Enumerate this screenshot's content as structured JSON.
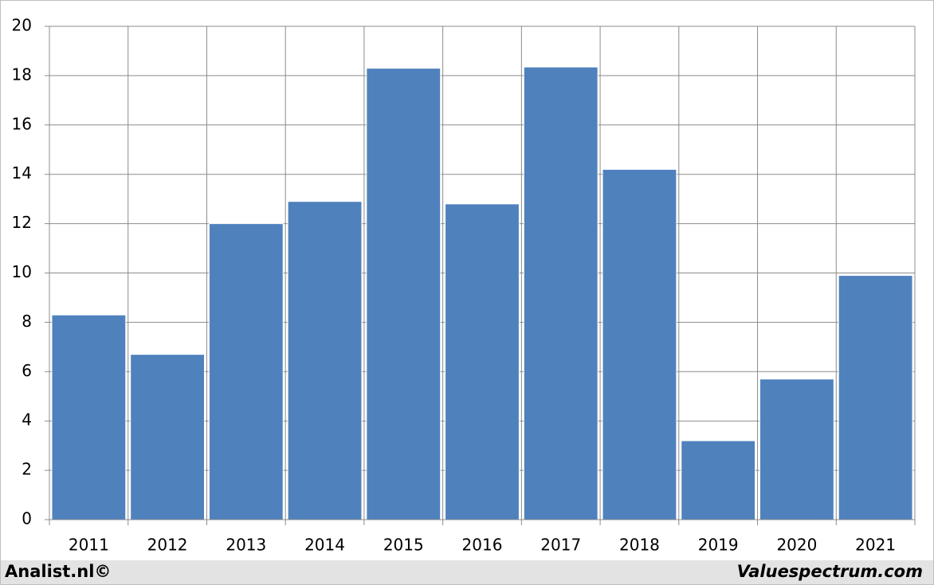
{
  "chart_data": {
    "type": "bar",
    "categories": [
      "2011",
      "2012",
      "2013",
      "2014",
      "2015",
      "2016",
      "2017",
      "2018",
      "2019",
      "2020",
      "2021"
    ],
    "values": [
      8.3,
      6.7,
      12.0,
      12.9,
      18.3,
      12.8,
      18.35,
      14.2,
      3.2,
      5.7,
      9.9
    ],
    "color": "#4f81bd",
    "ylim": [
      0,
      20
    ],
    "yticks": [
      0,
      2,
      4,
      6,
      8,
      10,
      12,
      14,
      16,
      18,
      20
    ],
    "grid": true,
    "footer_left": "Analist.nl©",
    "footer_right": "Valuespectrum.com"
  }
}
